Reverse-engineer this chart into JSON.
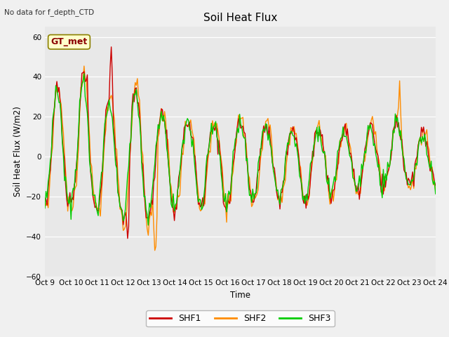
{
  "title": "Soil Heat Flux",
  "xlabel": "Time",
  "ylabel": "Soil Heat Flux (W/m2)",
  "top_left_text": "No data for f_depth_CTD",
  "annotation_box": "GT_met",
  "ylim": [
    -60,
    65
  ],
  "yticks": [
    -60,
    -40,
    -20,
    0,
    20,
    40,
    60
  ],
  "line_colors": {
    "SHF1": "#cc0000",
    "SHF2": "#ff8c00",
    "SHF3": "#00cc00"
  },
  "line_width": 1.0,
  "fig_bg": "#f0f0f0",
  "plot_bg": "#e8e8e8",
  "xtick_labels": [
    "Oct 9",
    "Oct 10",
    "Oct 11",
    "Oct 12",
    "Oct 13",
    "Oct 14",
    "Oct 15",
    "Oct 16",
    "Oct 17",
    "Oct 18",
    "Oct 19",
    "Oct 20",
    "Oct 21",
    "Oct 22",
    "Oct 23",
    "Oct 24"
  ],
  "legend_entries": [
    "SHF1",
    "SHF2",
    "SHF3"
  ]
}
